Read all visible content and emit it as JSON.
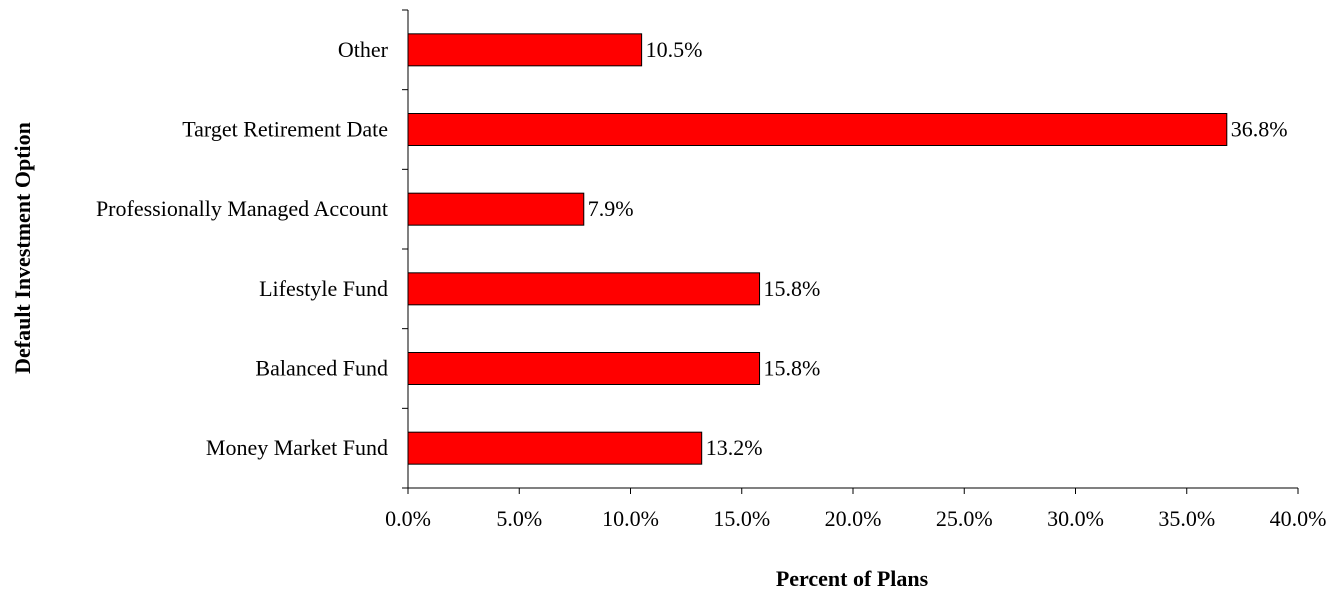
{
  "chart_data": {
    "type": "bar",
    "orientation": "horizontal",
    "title": "",
    "xlabel": "Percent of Plans",
    "ylabel": "Default Investment Option",
    "categories": [
      "Money Market Fund",
      "Balanced Fund",
      "Lifestyle Fund",
      "Professionally Managed Account",
      "Target Retirement Date",
      "Other"
    ],
    "values": [
      13.2,
      15.8,
      15.8,
      7.9,
      36.8,
      10.5
    ],
    "value_labels": [
      "13.2%",
      "15.8%",
      "15.8%",
      "7.9%",
      "36.8%",
      "10.5%"
    ],
    "xlim": [
      0,
      40
    ],
    "xticks": [
      0,
      5,
      10,
      15,
      20,
      25,
      30,
      35,
      40
    ],
    "xtick_labels": [
      "0.0%",
      "5.0%",
      "10.0%",
      "15.0%",
      "20.0%",
      "25.0%",
      "30.0%",
      "35.0%",
      "40.0%"
    ],
    "bar_color": "#ff0000",
    "bar_edge_color": "#000000",
    "grid": false,
    "legend": "none"
  }
}
